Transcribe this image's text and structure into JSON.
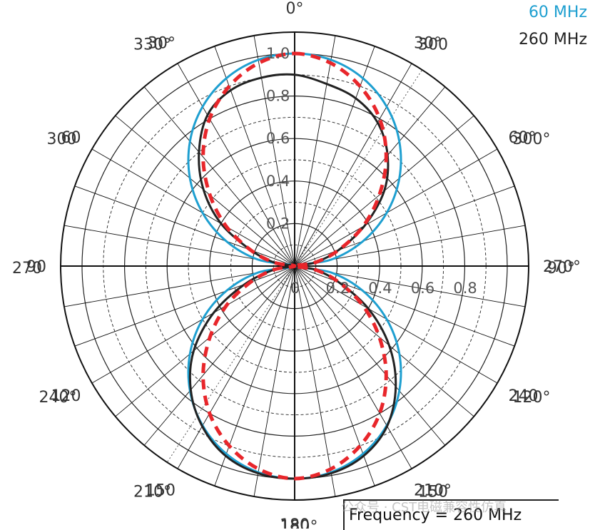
{
  "legend": {
    "entries": [
      {
        "label": "60 MHz",
        "color": "#1e9fd0"
      },
      {
        "label": "260 MHz",
        "color": "#222222"
      }
    ]
  },
  "frequency_label": "Frequency = 260 MHz",
  "watermark": "公众号 · CST电磁兼容性仿真",
  "chart_data": {
    "type": "polar",
    "title": "",
    "angular_labels": [
      {
        "text": "0°",
        "angle_deg": 0
      },
      {
        "text": "330°",
        "angle_deg": -30
      },
      {
        "text": "30°",
        "angle_deg": -30
      },
      {
        "text": "300",
        "angle_deg": 30
      },
      {
        "text": "30°",
        "angle_deg": 30
      },
      {
        "text": "300",
        "angle_deg": -60
      },
      {
        "text": "60",
        "angle_deg": -60
      },
      {
        "text": "300°",
        "angle_deg": 60
      },
      {
        "text": "60°",
        "angle_deg": 60
      },
      {
        "text": "270",
        "angle_deg": -90
      },
      {
        "text": "90",
        "angle_deg": -90
      },
      {
        "text": "90°",
        "angle_deg": 90
      },
      {
        "text": "270°",
        "angle_deg": 90
      },
      {
        "text": "240°",
        "angle_deg": -120
      },
      {
        "text": "120",
        "angle_deg": -120
      },
      {
        "text": "120°",
        "angle_deg": 120
      },
      {
        "text": "240",
        "angle_deg": 120
      },
      {
        "text": "210°",
        "angle_deg": -150
      },
      {
        "text": "150",
        "angle_deg": -150
      },
      {
        "text": "150",
        "angle_deg": 150
      },
      {
        "text": "210°",
        "angle_deg": 150
      },
      {
        "text": "180°",
        "angle_deg": 180
      },
      {
        "text": "180",
        "angle_deg": 180
      }
    ],
    "radial_ticks": [
      {
        "value": 0,
        "text": "0"
      },
      {
        "value": 0.2,
        "text": "0.2"
      },
      {
        "value": 0.4,
        "text": "0.4"
      },
      {
        "value": 0.6,
        "text": "0.6"
      },
      {
        "value": 0.8,
        "text": "0.8"
      },
      {
        "value": 1.0,
        "text": "1.0"
      }
    ],
    "radial_range": [
      0,
      1.1
    ],
    "angular_grid_step_deg": 10,
    "grid": true,
    "legend_position": "top-right",
    "series": [
      {
        "name": "60 MHz",
        "color": "#1e9fd0",
        "style": "solid",
        "angles_deg": [
          0,
          10,
          20,
          30,
          40,
          50,
          60,
          70,
          80,
          90,
          100,
          110,
          120,
          130,
          140,
          150,
          160,
          170,
          180,
          190,
          200,
          210,
          220,
          230,
          240,
          250,
          260,
          270,
          280,
          290,
          300,
          310,
          320,
          330,
          340,
          350,
          360
        ],
        "r": [
          1.0,
          0.985,
          0.94,
          0.866,
          0.766,
          0.643,
          0.5,
          0.342,
          0.174,
          0.0,
          0.174,
          0.342,
          0.5,
          0.643,
          0.766,
          0.866,
          0.94,
          0.985,
          1.0,
          0.985,
          0.94,
          0.866,
          0.766,
          0.643,
          0.5,
          0.342,
          0.174,
          0.0,
          0.174,
          0.342,
          0.5,
          0.643,
          0.766,
          0.866,
          0.94,
          0.985,
          1.0
        ]
      },
      {
        "name": "260 MHz",
        "color": "#222222",
        "style": "solid",
        "angles_deg": [
          0,
          10,
          20,
          30,
          40,
          50,
          60,
          70,
          80,
          90,
          100,
          110,
          120,
          130,
          140,
          150,
          160,
          170,
          180,
          190,
          200,
          210,
          220,
          230,
          240,
          250,
          260,
          270,
          280,
          290,
          300,
          310,
          320,
          330,
          340,
          350,
          360
        ],
        "r": [
          0.9,
          0.87,
          0.84,
          0.78,
          0.68,
          0.55,
          0.38,
          0.22,
          0.1,
          0.0,
          0.1,
          0.22,
          0.4,
          0.58,
          0.74,
          0.87,
          0.95,
          0.99,
          1.0,
          0.99,
          0.95,
          0.87,
          0.76,
          0.62,
          0.44,
          0.25,
          0.1,
          0.0,
          0.1,
          0.22,
          0.4,
          0.56,
          0.7,
          0.82,
          0.88,
          0.9,
          0.9
        ]
      },
      {
        "name": "",
        "color": "#e8262b",
        "style": "dashed",
        "angles_deg": [
          0,
          10,
          20,
          30,
          40,
          50,
          60,
          70,
          80,
          90,
          100,
          110,
          120,
          130,
          140,
          150,
          160,
          170,
          180,
          190,
          200,
          210,
          220,
          230,
          240,
          250,
          260,
          270,
          280,
          290,
          300,
          310,
          320,
          330,
          340,
          350,
          360
        ],
        "r": [
          1.0,
          0.97,
          0.9,
          0.8,
          0.67,
          0.52,
          0.37,
          0.22,
          0.1,
          0.0,
          0.1,
          0.22,
          0.37,
          0.52,
          0.67,
          0.8,
          0.9,
          0.97,
          1.0,
          0.97,
          0.9,
          0.8,
          0.67,
          0.52,
          0.37,
          0.22,
          0.1,
          0.0,
          0.1,
          0.22,
          0.37,
          0.52,
          0.67,
          0.8,
          0.9,
          0.97,
          1.0
        ]
      }
    ]
  }
}
